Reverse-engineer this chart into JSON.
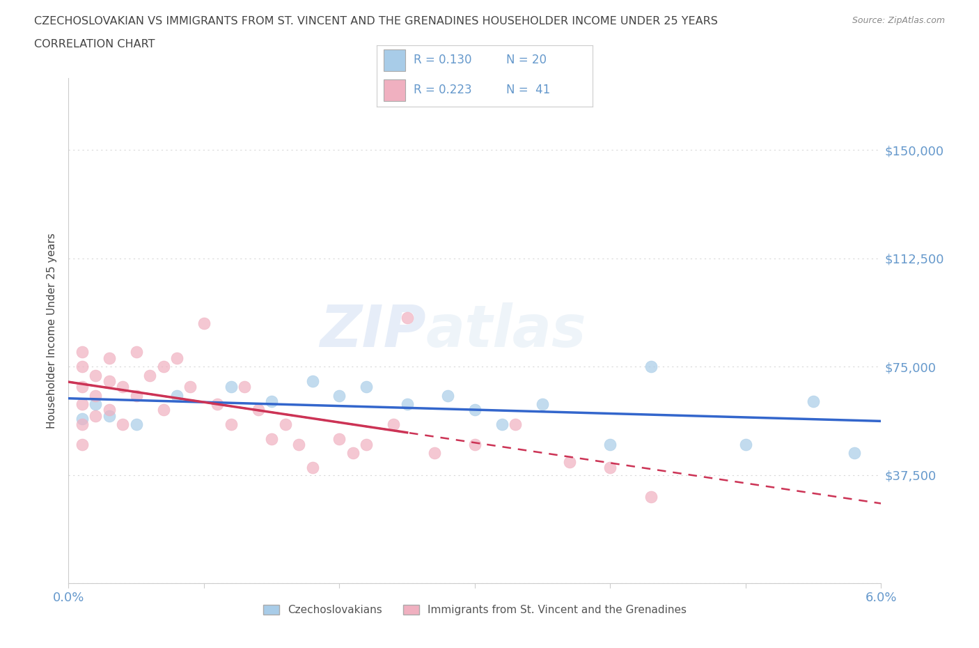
{
  "title_line1": "CZECHOSLOVAKIAN VS IMMIGRANTS FROM ST. VINCENT AND THE GRENADINES HOUSEHOLDER INCOME UNDER 25 YEARS",
  "title_line2": "CORRELATION CHART",
  "source_text": "Source: ZipAtlas.com",
  "ylabel": "Householder Income Under 25 years",
  "xmin": 0.0,
  "xmax": 0.06,
  "ymin": 0,
  "ymax": 175000,
  "yticks": [
    0,
    37500,
    75000,
    112500,
    150000
  ],
  "ytick_labels": [
    "",
    "$37,500",
    "$75,000",
    "$112,500",
    "$150,000"
  ],
  "xticks": [
    0.0,
    0.01,
    0.02,
    0.03,
    0.04,
    0.05,
    0.06
  ],
  "xtick_labels": [
    "0.0%",
    "",
    "",
    "",
    "",
    "",
    "6.0%"
  ],
  "grid_color": "#d8d8d8",
  "background_color": "#ffffff",
  "watermark_text": "ZIPatlas",
  "blue_color": "#a8cce8",
  "pink_color": "#f0b0c0",
  "blue_line_color": "#3366cc",
  "pink_line_color": "#cc3355",
  "title_color": "#444444",
  "axis_label_color": "#6699cc",
  "blue_scatter_x": [
    0.001,
    0.002,
    0.003,
    0.005,
    0.008,
    0.012,
    0.015,
    0.018,
    0.02,
    0.022,
    0.025,
    0.028,
    0.03,
    0.032,
    0.035,
    0.04,
    0.043,
    0.05,
    0.055,
    0.058
  ],
  "blue_scatter_y": [
    57000,
    62000,
    58000,
    55000,
    65000,
    68000,
    63000,
    70000,
    65000,
    68000,
    62000,
    65000,
    60000,
    55000,
    62000,
    48000,
    75000,
    48000,
    63000,
    45000
  ],
  "pink_scatter_x": [
    0.001,
    0.001,
    0.001,
    0.001,
    0.001,
    0.001,
    0.002,
    0.002,
    0.002,
    0.003,
    0.003,
    0.003,
    0.004,
    0.004,
    0.005,
    0.005,
    0.006,
    0.007,
    0.007,
    0.008,
    0.009,
    0.01,
    0.011,
    0.012,
    0.013,
    0.014,
    0.015,
    0.016,
    0.017,
    0.018,
    0.02,
    0.021,
    0.022,
    0.024,
    0.025,
    0.027,
    0.03,
    0.033,
    0.037,
    0.04,
    0.043
  ],
  "pink_scatter_y": [
    80000,
    75000,
    68000,
    62000,
    55000,
    48000,
    72000,
    65000,
    58000,
    78000,
    70000,
    60000,
    68000,
    55000,
    80000,
    65000,
    72000,
    75000,
    60000,
    78000,
    68000,
    90000,
    62000,
    55000,
    68000,
    60000,
    50000,
    55000,
    48000,
    40000,
    50000,
    45000,
    48000,
    55000,
    92000,
    45000,
    48000,
    55000,
    42000,
    40000,
    30000
  ]
}
